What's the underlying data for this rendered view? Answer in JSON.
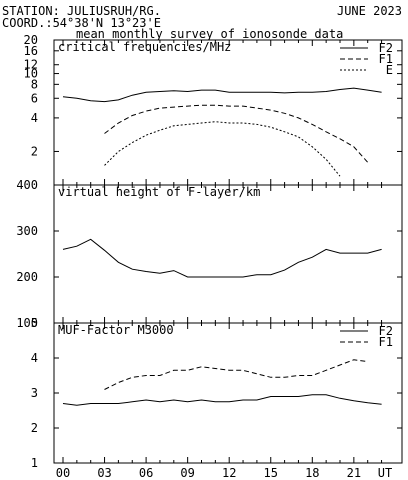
{
  "header": {
    "station": "STATION: JULIUSRUH/RG.",
    "date": "JUNE 2023",
    "coord": "COORD.:54°38'N 13°23'E",
    "subtitle": "mean monthly survey of ionosonde data"
  },
  "x_ticks": [
    "00",
    "03",
    "06",
    "09",
    "12",
    "15",
    "18",
    "21",
    "UT"
  ],
  "chart_data": [
    {
      "type": "line",
      "title": "critical frequencies/MHz",
      "y_scale": "log",
      "ylim": [
        1,
        20
      ],
      "yticks": [
        "2",
        "4",
        "6",
        "8",
        "10",
        "12",
        "16",
        "20"
      ],
      "x": [
        0,
        1,
        2,
        3,
        4,
        5,
        6,
        7,
        8,
        9,
        10,
        11,
        12,
        13,
        14,
        15,
        16,
        17,
        18,
        19,
        20,
        21,
        22,
        23
      ],
      "series": [
        {
          "name": "F2",
          "style": "solid",
          "values": [
            6.2,
            6.0,
            5.7,
            5.6,
            5.8,
            6.4,
            6.8,
            6.9,
            7.0,
            6.9,
            7.1,
            7.1,
            6.8,
            6.8,
            6.8,
            6.8,
            6.7,
            6.8,
            6.8,
            6.9,
            7.2,
            7.4,
            7.1,
            6.8
          ]
        },
        {
          "name": "F1",
          "style": "dashed",
          "values": [
            null,
            null,
            null,
            2.9,
            3.6,
            4.2,
            4.6,
            4.9,
            5.0,
            5.1,
            5.2,
            5.2,
            5.1,
            5.1,
            4.9,
            4.7,
            4.4,
            4.0,
            3.5,
            3.0,
            2.6,
            2.2,
            1.6,
            null
          ]
        },
        {
          "name": "E",
          "style": "dotted",
          "values": [
            null,
            null,
            null,
            1.5,
            2.0,
            2.4,
            2.8,
            3.1,
            3.4,
            3.5,
            3.6,
            3.7,
            3.6,
            3.6,
            3.5,
            3.3,
            3.0,
            2.7,
            2.2,
            1.7,
            1.2,
            null,
            null,
            null
          ]
        }
      ]
    },
    {
      "type": "line",
      "title": "virtual height of F-layer/km",
      "ylim": [
        100,
        400
      ],
      "yticks": [
        "100",
        "200",
        "300",
        "400"
      ],
      "x": [
        0,
        1,
        2,
        3,
        4,
        5,
        6,
        7,
        8,
        9,
        10,
        11,
        12,
        13,
        14,
        15,
        16,
        17,
        18,
        19,
        20,
        21,
        22,
        23
      ],
      "series": [
        {
          "name": "",
          "style": "solid",
          "values": [
            260,
            267,
            282,
            258,
            232,
            217,
            212,
            208,
            214,
            200,
            200,
            200,
            200,
            200,
            205,
            205,
            215,
            232,
            243,
            260,
            252,
            252,
            252,
            260
          ]
        }
      ]
    },
    {
      "type": "line",
      "title": "MUF-Factor M3000",
      "ylim": [
        1,
        5
      ],
      "yticks": [
        "1",
        "2",
        "3",
        "4",
        "5"
      ],
      "x": [
        0,
        1,
        2,
        3,
        4,
        5,
        6,
        7,
        8,
        9,
        10,
        11,
        12,
        13,
        14,
        15,
        16,
        17,
        18,
        19,
        20,
        21,
        22,
        23
      ],
      "series": [
        {
          "name": "F2",
          "style": "solid",
          "values": [
            2.7,
            2.65,
            2.7,
            2.7,
            2.7,
            2.75,
            2.8,
            2.75,
            2.8,
            2.75,
            2.8,
            2.75,
            2.75,
            2.8,
            2.8,
            2.9,
            2.9,
            2.9,
            2.95,
            2.95,
            2.85,
            2.78,
            2.72,
            2.68
          ]
        },
        {
          "name": "F1",
          "style": "dashed",
          "values": [
            null,
            null,
            null,
            3.1,
            3.3,
            3.45,
            3.5,
            3.5,
            3.65,
            3.65,
            3.75,
            3.7,
            3.65,
            3.65,
            3.55,
            3.45,
            3.45,
            3.5,
            3.5,
            3.65,
            3.8,
            3.95,
            3.9,
            null
          ]
        }
      ]
    }
  ]
}
